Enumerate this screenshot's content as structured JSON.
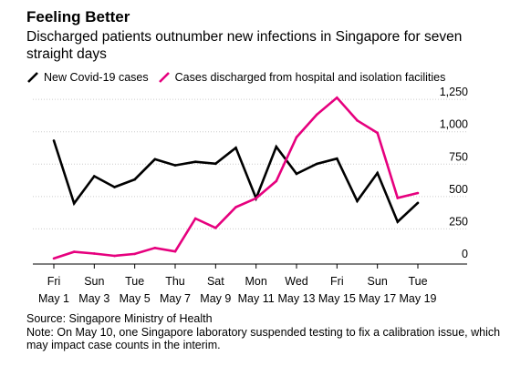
{
  "header": {
    "title": "Feeling Better",
    "subtitle": "Discharged patients outnumber new infections in Singapore for seven straight days"
  },
  "footer": {
    "source": "Source: Singapore Ministry of Health",
    "note": "Note: On May 10, one Singapore laboratory suspended testing to fix a calibration issue, which may impact case counts in the interim."
  },
  "colors": {
    "new_cases": "#000000",
    "discharged": "#e6007e",
    "axis": "#000000",
    "grid": "#cccccc"
  },
  "chart_data": {
    "type": "line",
    "title": "Feeling Better",
    "subtitle": "Discharged patients outnumber new infections in Singapore for seven straight days",
    "x": [
      "May 1",
      "May 2",
      "May 3",
      "May 4",
      "May 5",
      "May 6",
      "May 7",
      "May 8",
      "May 9",
      "May 10",
      "May 11",
      "May 12",
      "May 13",
      "May 14",
      "May 15",
      "May 16",
      "May 17",
      "May 18",
      "May 19"
    ],
    "x_tick_labels": [
      {
        "day": "Fri",
        "date": "May 1"
      },
      {
        "day": "Sun",
        "date": "May 3"
      },
      {
        "day": "Tue",
        "date": "May 5"
      },
      {
        "day": "Thu",
        "date": "May 7"
      },
      {
        "day": "Sat",
        "date": "May 9"
      },
      {
        "day": "Mon",
        "date": "May 11"
      },
      {
        "day": "Wed",
        "date": "May 13"
      },
      {
        "day": "Fri",
        "date": "May 15"
      },
      {
        "day": "Sun",
        "date": "May 17"
      },
      {
        "day": "Tue",
        "date": "May 19"
      }
    ],
    "y_ticks": [
      0,
      250,
      500,
      750,
      1000,
      1250
    ],
    "y_tick_labels": [
      "0",
      "250",
      "500",
      "750",
      "1,000",
      "1,250"
    ],
    "ylim": [
      0,
      1300
    ],
    "y_axis_side": "right",
    "grid": true,
    "legend_position": "top",
    "series": [
      {
        "name": "New Covid-19 cases",
        "color": "#000000",
        "values": [
          932,
          447,
          657,
          573,
          632,
          788,
          741,
          768,
          753,
          876,
          486,
          884,
          675,
          752,
          793,
          465,
          682,
          305,
          451
        ]
      },
      {
        "name": "Cases discharged from hospital and isolation facilities",
        "color": "#e6007e",
        "values": [
          22,
          73,
          60,
          42,
          57,
          103,
          76,
          330,
          258,
          418,
          486,
          619,
          958,
          1132,
          1263,
          1087,
          991,
          489,
          527
        ]
      }
    ]
  }
}
